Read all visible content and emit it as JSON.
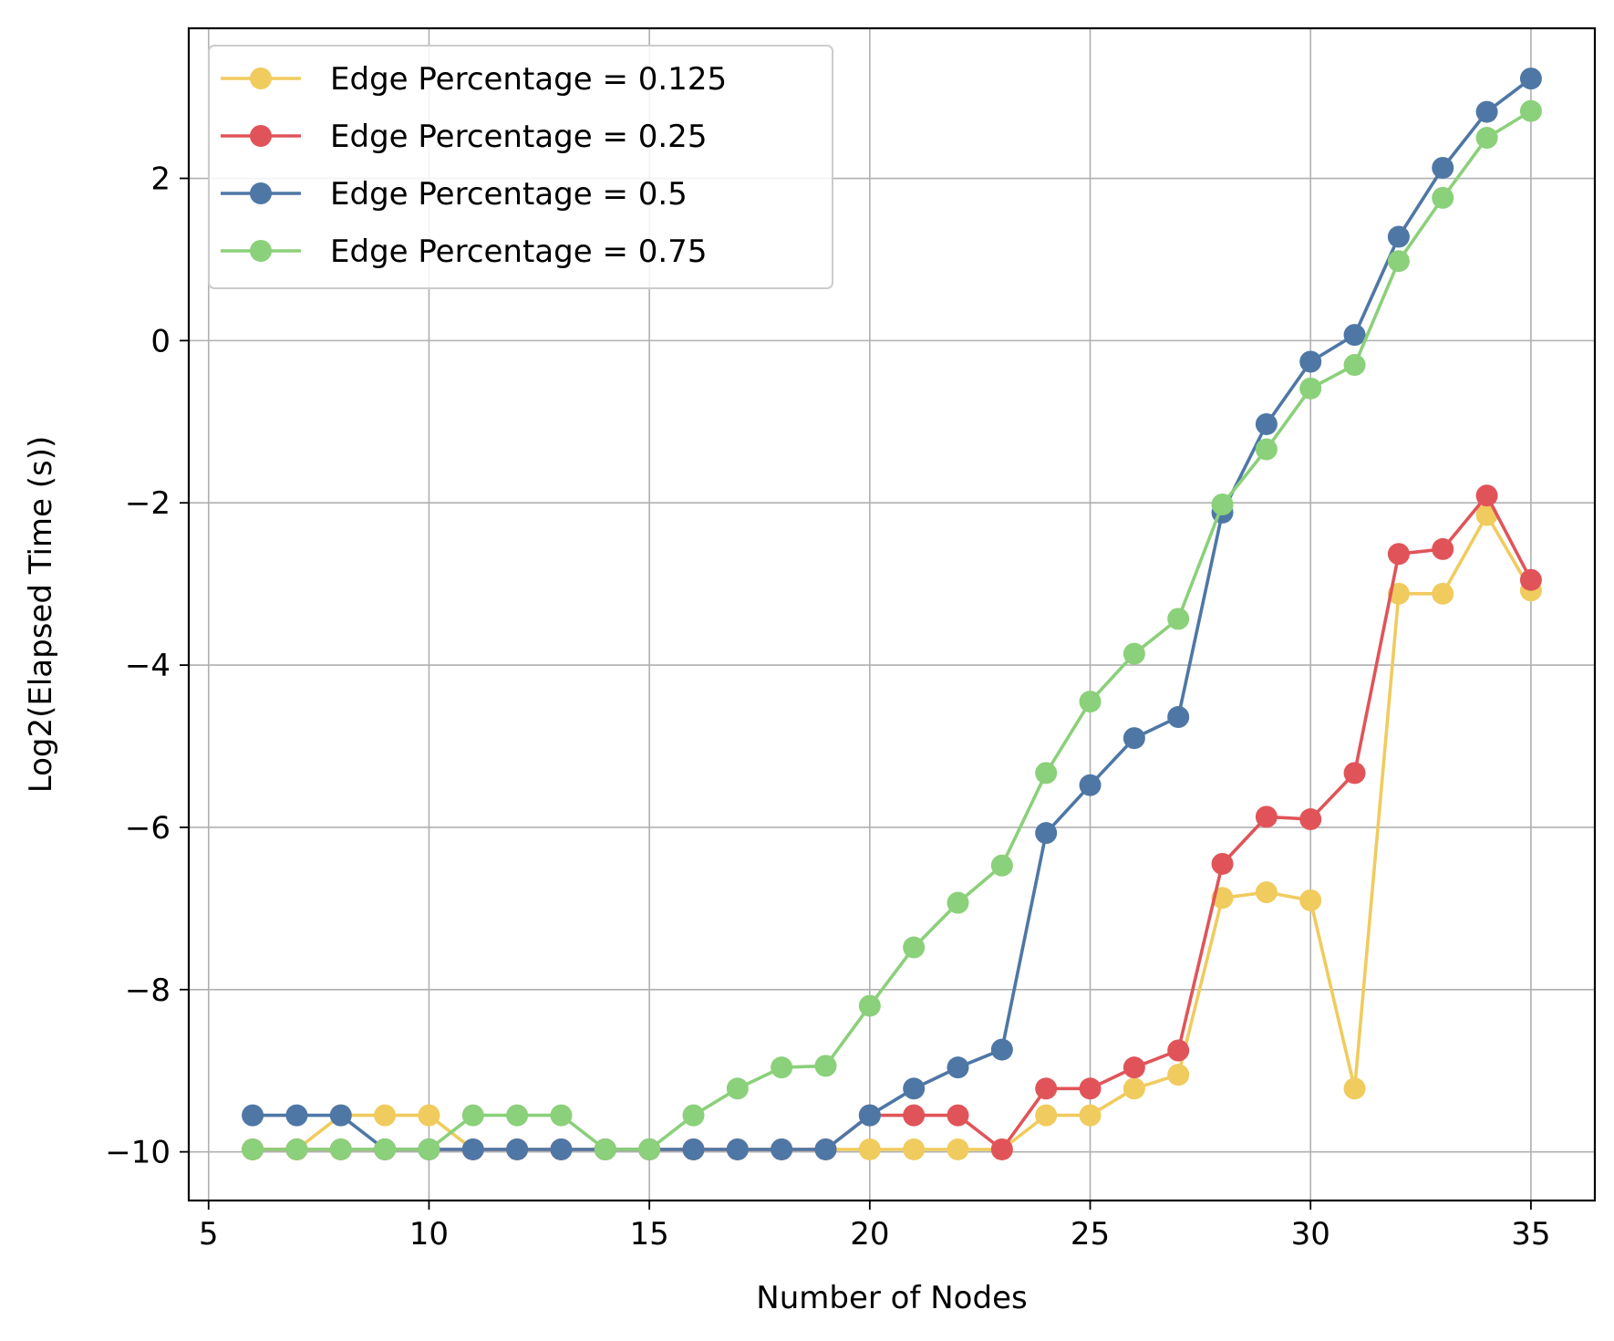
{
  "chart_data": {
    "type": "line",
    "title": "",
    "xlabel": "Number of Nodes",
    "ylabel": "Log2(Elapsed Time (s))",
    "xlim": [
      4.55,
      36.45
    ],
    "ylim": [
      -10.6,
      3.85
    ],
    "xticks": [
      5,
      10,
      15,
      20,
      25,
      30,
      35
    ],
    "yticks": [
      -10,
      -8,
      -6,
      -4,
      -2,
      0,
      2
    ],
    "xtick_labels": [
      "5",
      "10",
      "15",
      "20",
      "25",
      "30",
      "35"
    ],
    "ytick_labels": [
      "−10",
      "−8",
      "−6",
      "−4",
      "−2",
      "0",
      "2"
    ],
    "grid": true,
    "legend_position": "top-left",
    "x": [
      6,
      7,
      8,
      9,
      10,
      11,
      12,
      13,
      14,
      15,
      16,
      17,
      18,
      19,
      20,
      21,
      22,
      23,
      24,
      25,
      26,
      27,
      28,
      29,
      30,
      31,
      32,
      33,
      34,
      35
    ],
    "series": [
      {
        "name": "Edge Percentage = 0.125",
        "color": "#F0CB5E",
        "values": [
          -9.97,
          -9.97,
          -9.55,
          -9.55,
          -9.55,
          -9.97,
          -9.97,
          -9.97,
          -9.97,
          -9.97,
          -9.97,
          -9.97,
          -9.97,
          -9.97,
          -9.97,
          -9.97,
          -9.97,
          -9.97,
          -9.55,
          -9.55,
          -9.22,
          -9.05,
          -6.87,
          -6.8,
          -6.9,
          -9.22,
          -3.12,
          -3.12,
          -2.15,
          -3.08
        ]
      },
      {
        "name": "Edge Percentage = 0.25",
        "color": "#E05459",
        "values": [
          -9.97,
          -9.97,
          -9.97,
          -9.97,
          -9.97,
          -9.97,
          -9.97,
          -9.97,
          -9.97,
          -9.97,
          -9.97,
          -9.97,
          -9.97,
          -9.97,
          -9.55,
          -9.55,
          -9.55,
          -9.97,
          -9.22,
          -9.22,
          -8.96,
          -8.75,
          -6.45,
          -5.87,
          -5.9,
          -5.33,
          -2.63,
          -2.57,
          -1.91,
          -2.95
        ]
      },
      {
        "name": "Edge Percentage = 0.5",
        "color": "#4E77A5",
        "values": [
          -9.55,
          -9.55,
          -9.55,
          -9.97,
          -9.97,
          -9.97,
          -9.97,
          -9.97,
          -9.97,
          -9.97,
          -9.97,
          -9.97,
          -9.97,
          -9.97,
          -9.55,
          -9.22,
          -8.96,
          -8.74,
          -6.07,
          -5.48,
          -4.9,
          -4.64,
          -2.12,
          -1.03,
          -0.26,
          0.07,
          1.28,
          2.13,
          2.82,
          3.23
        ]
      },
      {
        "name": "Edge Percentage = 0.75",
        "color": "#8BD07A",
        "values": [
          -9.97,
          -9.97,
          -9.97,
          -9.97,
          -9.97,
          -9.55,
          -9.55,
          -9.55,
          -9.97,
          -9.97,
          -9.55,
          -9.22,
          -8.96,
          -8.94,
          -8.2,
          -7.48,
          -6.93,
          -6.47,
          -5.33,
          -4.45,
          -3.86,
          -3.43,
          -2.02,
          -1.34,
          -0.59,
          -0.3,
          0.98,
          1.76,
          2.5,
          2.83
        ]
      }
    ]
  }
}
